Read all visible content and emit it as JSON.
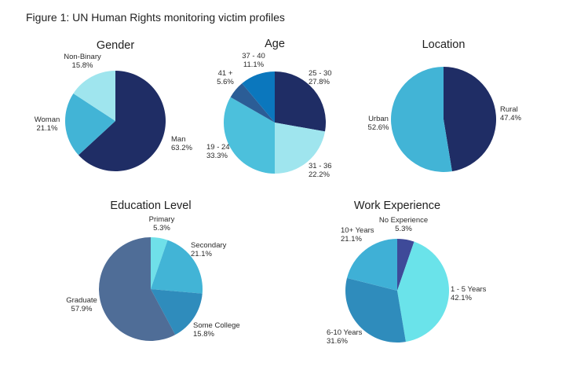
{
  "figure_title": "Figure 1: UN Human Rights monitoring victim profiles",
  "chart_data": [
    {
      "type": "pie",
      "title": "Gender",
      "slices": [
        {
          "label": "Man",
          "percent_text": "63.2%",
          "value": 63.2,
          "color": "#1f2d65"
        },
        {
          "label": "Woman",
          "percent_text": "21.1%",
          "value": 21.1,
          "color": "#42b4d6"
        },
        {
          "label": "Non-Binary",
          "percent_text": "15.8%",
          "value": 15.8,
          "color": "#9fe5ee"
        }
      ]
    },
    {
      "type": "pie",
      "title": "Age",
      "slices": [
        {
          "label": "25 - 30",
          "percent_text": "27.8%",
          "value": 27.8,
          "color": "#1f2d65"
        },
        {
          "label": "31 - 36",
          "percent_text": "22.2%",
          "value": 22.2,
          "color": "#9fe5ee"
        },
        {
          "label": "19 - 24",
          "percent_text": "33.3%",
          "value": 33.3,
          "color": "#4cc0dc"
        },
        {
          "label": "41 +",
          "percent_text": "5.6%",
          "value": 5.6,
          "color": "#2b5d96"
        },
        {
          "label": "37 - 40",
          "percent_text": "11.1%",
          "value": 11.1,
          "color": "#0b77bd"
        }
      ]
    },
    {
      "type": "pie",
      "title": "Location",
      "slices": [
        {
          "label": "Rural",
          "percent_text": "47.4%",
          "value": 47.4,
          "color": "#1f2d65"
        },
        {
          "label": "Urban",
          "percent_text": "52.6%",
          "value": 52.6,
          "color": "#42b4d6"
        }
      ]
    },
    {
      "type": "pie",
      "title": "Education Level",
      "slices": [
        {
          "label": "Primary",
          "percent_text": "5.3%",
          "value": 5.3,
          "color": "#6fe0e9"
        },
        {
          "label": "Secondary",
          "percent_text": "21.1%",
          "value": 21.1,
          "color": "#42b4d6"
        },
        {
          "label": "Some College",
          "percent_text": "15.8%",
          "value": 15.8,
          "color": "#2f8cbc"
        },
        {
          "label": "Graduate",
          "percent_text": "57.9%",
          "value": 57.9,
          "color": "#4f6d97"
        }
      ]
    },
    {
      "type": "pie",
      "title": "Work Experience",
      "slices": [
        {
          "label": "No Experience",
          "percent_text": "5.3%",
          "value": 5.3,
          "color": "#3e4a99"
        },
        {
          "label": "1 - 5 Years",
          "percent_text": "42.1%",
          "value": 42.1,
          "color": "#6ae3ea"
        },
        {
          "label": "6-10 Years",
          "percent_text": "31.6%",
          "value": 31.6,
          "color": "#2f8cbc"
        },
        {
          "label": "10+ Years",
          "percent_text": "21.1%",
          "value": 21.1,
          "color": "#3fb0d6"
        }
      ]
    }
  ]
}
